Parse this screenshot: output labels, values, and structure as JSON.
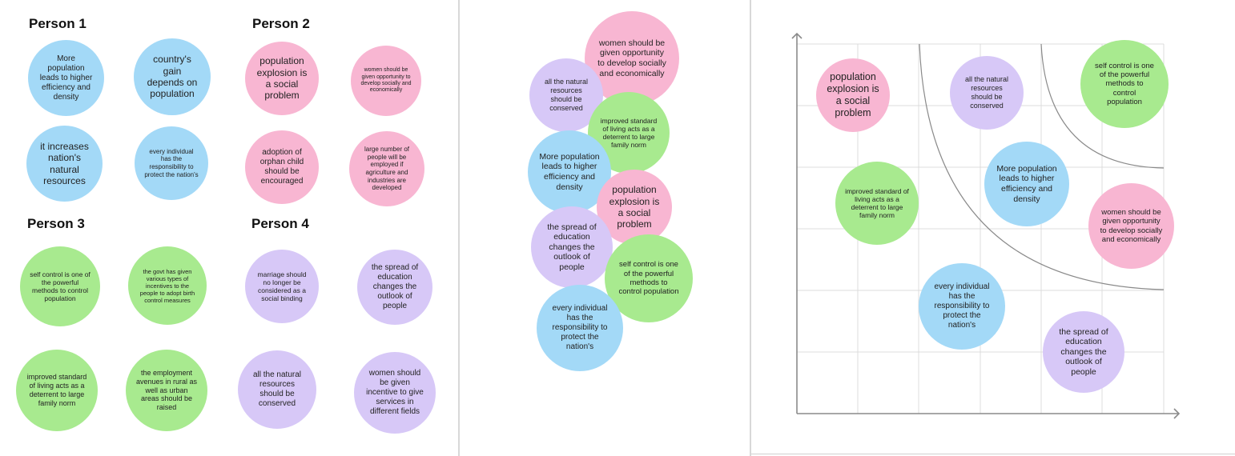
{
  "colors": {
    "blue": "#a3d9f7",
    "pink": "#f8b6d2",
    "green": "#a8ea8f",
    "purple": "#d7c8f7"
  },
  "left_panel": {
    "headings": {
      "person1": "Person 1",
      "person2": "Person 2",
      "person3": "Person 3",
      "person4": "Person 4"
    },
    "person1": [
      "More population leads to higher efficiency and density",
      "country's gain depends on population",
      "it increases nation's natural resources",
      "every individual has the responsibility to protect the nation's"
    ],
    "person2": [
      "population explosion is a social problem",
      "women should be given opportunity to develop socially and economically",
      "adoption of orphan child should be encouraged",
      "large number of people will be employed if agriculture and industries are developed"
    ],
    "person3": [
      "self control is one of the powerful methods to control population",
      "the govt has given various types of incentives to the people to adopt birth control measures",
      "improved standard of living acts as a deterrent to large family norm",
      "the employment avenues in rural as well as urban areas should be raised"
    ],
    "person4": [
      "marriage should no longer be considered as a social binding",
      "the spread of education changes the outlook of people",
      "all the natural resources should be conserved",
      "women should be given incentive to give services in different fields"
    ]
  },
  "middle_panel": {
    "notes": [
      "women should be given opportunity to develop socially and economically",
      "all the natural resources should be conserved",
      "improved standard of living acts as a deterrent to large family norm",
      "More population leads to higher efficiency and density",
      "population explosion is a social problem",
      "the spread of education changes the outlook of people",
      "self control is one of the powerful methods to control population",
      "every individual has the responsibility to protect the nation's"
    ]
  },
  "right_panel": {
    "notes": [
      "population explosion is a social problem",
      "all the natural resources should be conserved",
      "self control is one of the powerful methods to control population",
      "improved standard of living acts as a deterrent to large family norm",
      "More population leads to higher efficiency and density",
      "women should be given opportunity to develop socially and economically",
      "every individual has the responsibility to protect the nation's",
      "the spread of education changes the outlook of people"
    ]
  }
}
